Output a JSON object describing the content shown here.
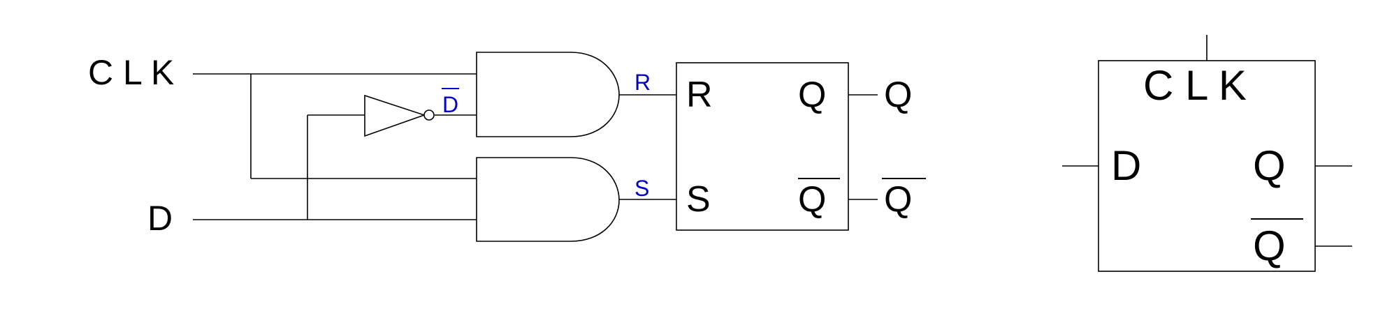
{
  "circuit": {
    "inputs": {
      "clk": "C L K",
      "d": "D"
    },
    "inverter_output": "D",
    "and_outputs": {
      "r": "R",
      "s": "S"
    },
    "latch": {
      "r_in": "R",
      "s_in": "S",
      "q_out": "Q",
      "qbar_out": "Q"
    },
    "outputs": {
      "q": "Q",
      "qbar": "Q"
    }
  },
  "symbol": {
    "clk": "C L K",
    "d": "D",
    "q": "Q",
    "qbar": "Q"
  },
  "colors": {
    "line": "#000000",
    "signal_label": "#0000cc"
  }
}
